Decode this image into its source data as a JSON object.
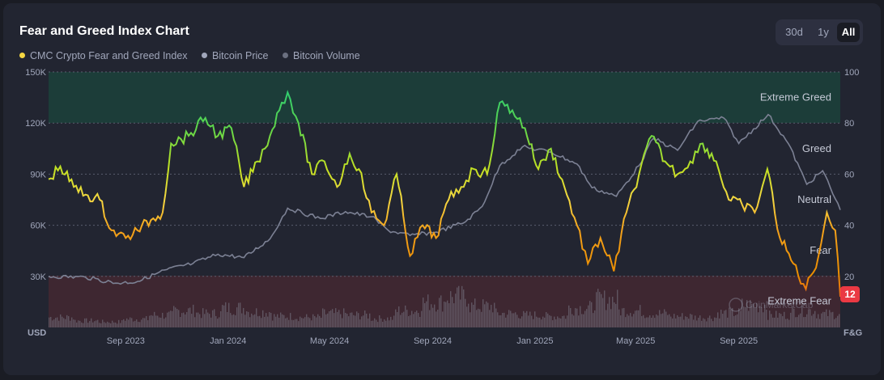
{
  "header": {
    "title": "Fear and Greed Index Chart",
    "range_buttons": [
      {
        "label": "30d",
        "active": false
      },
      {
        "label": "1y",
        "active": false
      },
      {
        "label": "All",
        "active": true
      }
    ]
  },
  "legend": [
    {
      "label": "CMC Crypto Fear and Greed Index",
      "color": "#f5d742"
    },
    {
      "label": "Bitcoin Price",
      "color": "#a1a7bb"
    },
    {
      "label": "Bitcoin Volume",
      "color": "#6b7080"
    }
  ],
  "watermark": "CoinMarketCap",
  "chart_data": {
    "type": "line",
    "x_ticks": [
      "Sep 2023",
      "Jan 2024",
      "May 2024",
      "Sep 2024",
      "Jan 2025",
      "May 2025",
      "Sep 2025"
    ],
    "x_range": [
      "2023-06-01",
      "2025-12-31"
    ],
    "left_axis": {
      "label": "USD",
      "ticks": [
        "30K",
        "60K",
        "90K",
        "120K",
        "150K"
      ],
      "range": [
        0,
        150000
      ]
    },
    "right_axis": {
      "label": "F&G",
      "ticks": [
        "20",
        "40",
        "60",
        "80",
        "100"
      ],
      "range": [
        0,
        100
      ]
    },
    "zones": [
      {
        "label": "Extreme Greed",
        "from": 80,
        "to": 100,
        "color": "#1c3d39"
      },
      {
        "label": "Greed",
        "from": 60,
        "to": 80
      },
      {
        "label": "Neutral",
        "from": 40,
        "to": 60
      },
      {
        "label": "Fear",
        "from": 20,
        "to": 40
      },
      {
        "label": "Extreme Fear",
        "from": 0,
        "to": 20,
        "color": "#3e2731"
      }
    ],
    "current_value": "12",
    "series": [
      {
        "name": "CMC Crypto Fear and Greed Index",
        "axis": "right",
        "points": [
          [
            "2023-06-01",
            58
          ],
          [
            "2023-06-15",
            63
          ],
          [
            "2023-07-01",
            55
          ],
          [
            "2023-07-15",
            52
          ],
          [
            "2023-08-01",
            50
          ],
          [
            "2023-08-15",
            38
          ],
          [
            "2023-09-01",
            35
          ],
          [
            "2023-09-15",
            38
          ],
          [
            "2023-10-01",
            42
          ],
          [
            "2023-10-15",
            45
          ],
          [
            "2023-10-25",
            72
          ],
          [
            "2023-11-15",
            75
          ],
          [
            "2023-12-05",
            82
          ],
          [
            "2023-12-20",
            75
          ],
          [
            "2024-01-05",
            78
          ],
          [
            "2024-01-20",
            55
          ],
          [
            "2024-02-05",
            65
          ],
          [
            "2024-02-20",
            75
          ],
          [
            "2024-03-05",
            88
          ],
          [
            "2024-03-12",
            92
          ],
          [
            "2024-03-25",
            80
          ],
          [
            "2024-04-10",
            60
          ],
          [
            "2024-04-25",
            65
          ],
          [
            "2024-05-10",
            55
          ],
          [
            "2024-05-25",
            68
          ],
          [
            "2024-06-05",
            62
          ],
          [
            "2024-06-20",
            45
          ],
          [
            "2024-07-05",
            40
          ],
          [
            "2024-07-20",
            60
          ],
          [
            "2024-08-05",
            28
          ],
          [
            "2024-08-20",
            40
          ],
          [
            "2024-09-05",
            35
          ],
          [
            "2024-09-20",
            50
          ],
          [
            "2024-10-05",
            55
          ],
          [
            "2024-10-20",
            62
          ],
          [
            "2024-11-05",
            60
          ],
          [
            "2024-11-20",
            88
          ],
          [
            "2024-12-05",
            85
          ],
          [
            "2024-12-20",
            78
          ],
          [
            "2025-01-05",
            62
          ],
          [
            "2025-01-20",
            70
          ],
          [
            "2025-02-05",
            55
          ],
          [
            "2025-02-20",
            40
          ],
          [
            "2025-03-05",
            25
          ],
          [
            "2025-03-20",
            35
          ],
          [
            "2025-04-05",
            22
          ],
          [
            "2025-04-20",
            45
          ],
          [
            "2025-05-05",
            60
          ],
          [
            "2025-05-20",
            75
          ],
          [
            "2025-06-05",
            65
          ],
          [
            "2025-06-20",
            60
          ],
          [
            "2025-07-05",
            65
          ],
          [
            "2025-07-20",
            72
          ],
          [
            "2025-08-05",
            65
          ],
          [
            "2025-08-20",
            50
          ],
          [
            "2025-09-05",
            48
          ],
          [
            "2025-09-20",
            45
          ],
          [
            "2025-10-05",
            62
          ],
          [
            "2025-10-20",
            35
          ],
          [
            "2025-11-05",
            25
          ],
          [
            "2025-11-20",
            15
          ],
          [
            "2025-12-05",
            28
          ],
          [
            "2025-12-15",
            45
          ],
          [
            "2025-12-25",
            38
          ],
          [
            "2025-12-31",
            12
          ]
        ]
      },
      {
        "name": "Bitcoin Price",
        "axis": "left",
        "points": [
          [
            "2023-06-01",
            30000
          ],
          [
            "2023-07-15",
            29500
          ],
          [
            "2023-08-20",
            26000
          ],
          [
            "2023-09-15",
            27000
          ],
          [
            "2023-10-20",
            34000
          ],
          [
            "2023-11-20",
            37500
          ],
          [
            "2023-12-20",
            43000
          ],
          [
            "2024-01-20",
            41000
          ],
          [
            "2024-02-20",
            52000
          ],
          [
            "2024-03-12",
            70000
          ],
          [
            "2024-04-20",
            64000
          ],
          [
            "2024-05-20",
            68000
          ],
          [
            "2024-06-20",
            65000
          ],
          [
            "2024-07-10",
            57000
          ],
          [
            "2024-08-05",
            54000
          ],
          [
            "2024-09-05",
            56000
          ],
          [
            "2024-10-10",
            62000
          ],
          [
            "2024-10-30",
            71000
          ],
          [
            "2024-11-20",
            95000
          ],
          [
            "2024-12-17",
            106000
          ],
          [
            "2025-01-20",
            103000
          ],
          [
            "2025-02-20",
            96000
          ],
          [
            "2025-03-10",
            82000
          ],
          [
            "2025-04-08",
            77000
          ],
          [
            "2025-05-05",
            95000
          ],
          [
            "2025-05-22",
            111000
          ],
          [
            "2025-06-20",
            104000
          ],
          [
            "2025-07-14",
            121000
          ],
          [
            "2025-08-14",
            123000
          ],
          [
            "2025-09-01",
            108000
          ],
          [
            "2025-10-06",
            125000
          ],
          [
            "2025-10-30",
            108000
          ],
          [
            "2025-11-21",
            84000
          ],
          [
            "2025-12-10",
            92000
          ],
          [
            "2025-12-31",
            69000
          ]
        ]
      },
      {
        "name": "Bitcoin Volume",
        "axis": "left",
        "note_scale": "relative",
        "levels": [
          0.18,
          0.12,
          0.1,
          0.15,
          0.22,
          0.3,
          0.25,
          0.35,
          0.28,
          0.2,
          0.18,
          0.25,
          0.22,
          0.16,
          0.3,
          0.45,
          0.55,
          0.38,
          0.25,
          0.22,
          0.2,
          0.35,
          0.5,
          0.3,
          0.25,
          0.2,
          0.18,
          0.26,
          0.4,
          0.22,
          0.3,
          0.24
        ]
      }
    ]
  }
}
